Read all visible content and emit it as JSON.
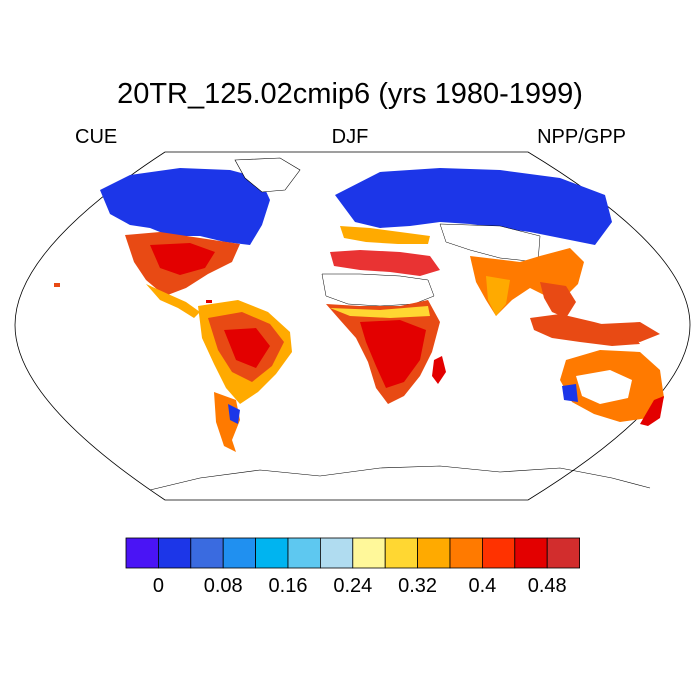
{
  "title": "20TR_125.02cmip6 (yrs 1980-1999)",
  "subtitle_left": "CUE",
  "subtitle_center": "DJF",
  "subtitle_right": "NPP/GPP",
  "colorbar": {
    "colors": [
      "#4a14f5",
      "#1c36e8",
      "#3a6be0",
      "#2090f0",
      "#00b4f0",
      "#5ec8f0",
      "#b0dcf0",
      "#fff89a",
      "#ffd732",
      "#ffaa00",
      "#ff7a00",
      "#ff3200",
      "#e30000",
      "#d22d2d"
    ],
    "tick_labels": [
      "0",
      "0.08",
      "0.16",
      "0.24",
      "0.32",
      "0.4",
      "0.48"
    ]
  },
  "map_legend": {
    "land_no_data": "#ffffff",
    "high_latitude": "#1c36e8"
  }
}
